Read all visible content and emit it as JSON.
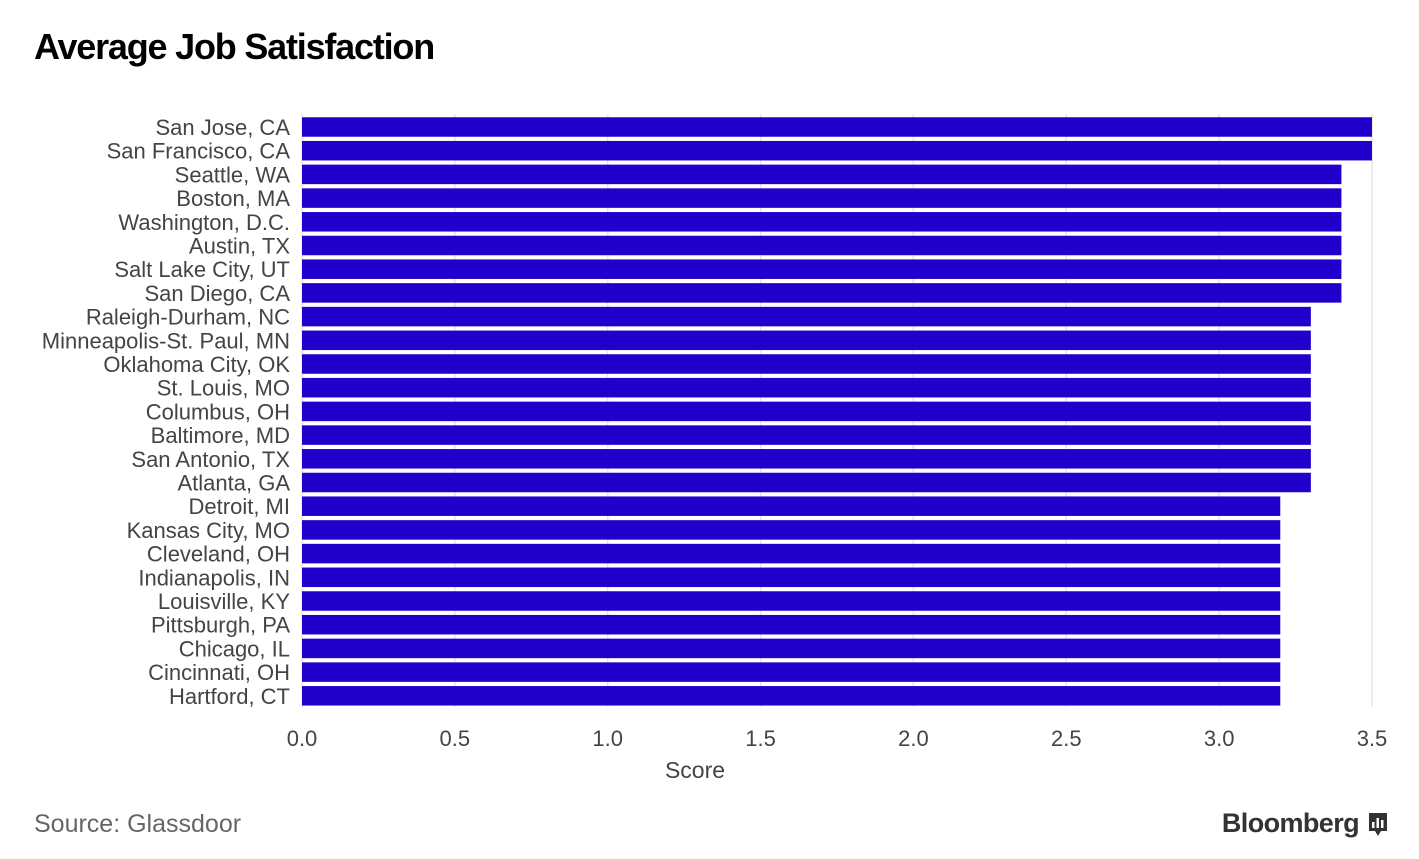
{
  "title": "Average Job Satisfaction",
  "source": "Source: Glassdoor",
  "brand": "Bloomberg",
  "colors": {
    "bar": "#2200cc",
    "grid": "#e6e6e6",
    "label": "#444444",
    "tick": "#444444"
  },
  "chart_data": {
    "type": "bar",
    "orientation": "horizontal",
    "title": "Average Job Satisfaction",
    "xlabel": "Score",
    "ylabel": "",
    "xlim": [
      0,
      3.5
    ],
    "xticks": [
      "0.0",
      "0.5",
      "1.0",
      "1.5",
      "2.0",
      "2.5",
      "3.0",
      "3.5"
    ],
    "grid": "vertical",
    "categories": [
      "San Jose, CA",
      "San Francisco, CA",
      "Seattle, WA",
      "Boston, MA",
      "Washington, D.C.",
      "Austin, TX",
      "Salt Lake City, UT",
      "San Diego, CA",
      "Raleigh-Durham, NC",
      "Minneapolis-St. Paul, MN",
      "Oklahoma City, OK",
      "St. Louis, MO",
      "Columbus, OH",
      "Baltimore, MD",
      "San Antonio, TX",
      "Atlanta, GA",
      "Detroit, MI",
      "Kansas City, MO",
      "Cleveland, OH",
      "Indianapolis, IN",
      "Louisville, KY",
      "Pittsburgh, PA",
      "Chicago, IL",
      "Cincinnati, OH",
      "Hartford, CT"
    ],
    "values": [
      3.5,
      3.5,
      3.4,
      3.4,
      3.4,
      3.4,
      3.4,
      3.4,
      3.3,
      3.3,
      3.3,
      3.3,
      3.3,
      3.3,
      3.3,
      3.3,
      3.2,
      3.2,
      3.2,
      3.2,
      3.2,
      3.2,
      3.2,
      3.2,
      3.2
    ]
  }
}
